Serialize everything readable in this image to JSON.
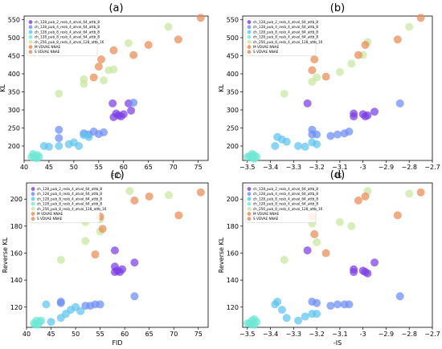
{
  "chart_data": [
    {
      "type": "scatter",
      "title": "(a)",
      "xlabel": "FID",
      "ylabel": "KL",
      "xlim": [
        40,
        77
      ],
      "ylim": [
        160,
        560
      ],
      "xticks": [
        40,
        45,
        50,
        55,
        60,
        65,
        70,
        75
      ],
      "yticks": [
        200,
        250,
        300,
        350,
        400,
        450,
        500,
        550
      ],
      "legend_position": "top-left",
      "series": [
        {
          "name": "ch_128_pub_2_resb_4_atval_64_attb_8",
          "color": "#7b3fe4",
          "points": [
            [
              58,
              280
            ],
            [
              59,
              285
            ],
            [
              59.5,
              282
            ],
            [
              60,
              288
            ],
            [
              58.5,
              290
            ],
            [
              61.5,
              298
            ],
            [
              61,
              318
            ],
            [
              57.8,
              318
            ]
          ]
        },
        {
          "name": "ch_128_pub_4_resb_4_atval_64_attb_8",
          "color": "#6c8ef5",
          "points": [
            [
              47,
              245
            ],
            [
              52,
              235
            ],
            [
              53,
              232
            ],
            [
              54,
              240
            ],
            [
              55,
              233
            ],
            [
              56,
              238
            ],
            [
              62,
              320
            ],
            [
              47,
              222
            ]
          ]
        },
        {
          "name": "ch_128_pub_8_resb_4_atval_64_attb_8",
          "color": "#5fc3ee",
          "points": [
            [
              44,
              200
            ],
            [
              45,
              198
            ],
            [
              47,
              200
            ],
            [
              49,
              205
            ],
            [
              50,
              210
            ],
            [
              51,
              200
            ],
            [
              52,
              230
            ],
            [
              53,
              225
            ]
          ]
        },
        {
          "name": "ch_128_pub_8_resb_4_atval_64_attb_8",
          "color": "#6ee8d4",
          "points": [
            [
              41.5,
              170
            ],
            [
              42,
              172
            ],
            [
              42.3,
              168
            ],
            [
              42.7,
              175
            ],
            [
              43,
              170
            ],
            [
              41.8,
              178
            ],
            [
              42.5,
              166
            ]
          ]
        },
        {
          "name": "ch_256_pub_8_resb_4_atval_128_attb_16",
          "color": "#c8e6a0",
          "points": [
            [
              47,
              345
            ],
            [
              52,
              385
            ],
            [
              52,
              372
            ],
            [
              56,
              382
            ],
            [
              57,
              410
            ],
            [
              58,
              412
            ],
            [
              61,
              485
            ],
            [
              69,
              530
            ]
          ]
        },
        {
          "name": "M VDVAE NNAE",
          "color": "#e88a55",
          "points": [
            [
              54,
              390
            ],
            [
              55,
              420
            ],
            [
              55.5,
              440
            ],
            [
              58,
              465
            ],
            [
              62,
              452
            ],
            [
              65,
              480
            ],
            [
              71,
              495
            ],
            [
              75.5,
              555
            ]
          ]
        },
        {
          "name": "S VDVAE NNAE",
          "color": "#e88a55",
          "points": []
        }
      ]
    },
    {
      "type": "scatter",
      "title": "(b)",
      "xlabel": "-IS",
      "ylabel": "KL",
      "xlim": [
        -3.52,
        -2.7
      ],
      "ylim": [
        160,
        560
      ],
      "xticks": [
        -3.5,
        -3.4,
        -3.3,
        -3.2,
        -3.1,
        -3.0,
        -2.9,
        -2.8,
        -2.7
      ],
      "yticks": [
        200,
        250,
        300,
        350,
        400,
        450,
        500,
        550
      ],
      "legend_position": "top-left",
      "series": [
        {
          "name": "ch_128_pub_2_resb_4_atval_64_attb_8",
          "color": "#7b3fe4",
          "points": [
            [
              -3.24,
              318
            ],
            [
              -3.04,
              290
            ],
            [
              -3.04,
              282
            ],
            [
              -3.0,
              288
            ],
            [
              -2.99,
              282
            ],
            [
              -2.98,
              285
            ],
            [
              -2.95,
              295
            ]
          ]
        },
        {
          "name": "ch_128_pub_4_resb_4_atval_64_attb_8",
          "color": "#6c8ef5",
          "points": [
            [
              -3.22,
              245
            ],
            [
              -3.2,
              232
            ],
            [
              -3.14,
              228
            ],
            [
              -3.11,
              232
            ],
            [
              -3.08,
              235
            ],
            [
              -3.06,
              240
            ],
            [
              -2.84,
              318
            ],
            [
              -3.22,
              232
            ]
          ]
        },
        {
          "name": "ch_128_pub_8_resb_4_atval_64_attb_8",
          "color": "#5fc3ee",
          "points": [
            [
              -3.37,
              225
            ],
            [
              -3.35,
              218
            ],
            [
              -3.33,
              212
            ],
            [
              -3.28,
              200
            ],
            [
              -3.25,
              198
            ],
            [
              -3.22,
              210
            ],
            [
              -3.2,
              205
            ],
            [
              -3.38,
              200
            ]
          ]
        },
        {
          "name": "ch_128_pub_8_resb_4_atval_64_attb_8",
          "color": "#6ee8d4",
          "points": [
            [
              -3.49,
              172
            ],
            [
              -3.48,
              168
            ],
            [
              -3.47,
              175
            ],
            [
              -3.46,
              170
            ],
            [
              -3.47,
              165
            ],
            [
              -3.48,
              178
            ],
            [
              -3.5,
              170
            ]
          ]
        },
        {
          "name": "ch_256_pub_8_resb_4_atval_128_attb_16",
          "color": "#c8e6a0",
          "points": [
            [
              -3.34,
              345
            ],
            [
              -3.22,
              378
            ],
            [
              -3.2,
              390
            ],
            [
              -3.1,
              405
            ],
            [
              -3.05,
              428
            ],
            [
              -3.0,
              452
            ],
            [
              -2.98,
              488
            ],
            [
              -2.8,
              530
            ]
          ]
        },
        {
          "name": "M VDVAE NNAE",
          "color": "#e88a55",
          "points": [
            [
              -3.22,
              410
            ],
            [
              -3.21,
              440
            ],
            [
              -3.16,
              392
            ],
            [
              -3.02,
              452
            ],
            [
              -2.99,
              480
            ],
            [
              -2.85,
              495
            ],
            [
              -2.75,
              555
            ]
          ]
        },
        {
          "name": "S VDVAE NNAE",
          "color": "#e88a55",
          "points": []
        }
      ]
    },
    {
      "type": "scatter",
      "title": "(c)",
      "xlabel": "FID",
      "ylabel": "Reverse KL",
      "xlim": [
        40,
        77
      ],
      "ylim": [
        105,
        212
      ],
      "xticks": [
        40,
        45,
        50,
        55,
        60,
        65,
        70,
        75
      ],
      "yticks": [
        120,
        140,
        160,
        180,
        200
      ],
      "legend_position": "top-left",
      "series": [
        {
          "name": "ch_128_pub_2_resb_4_atval_64_attb_8",
          "color": "#7b3fe4",
          "points": [
            [
              58,
              146
            ],
            [
              58.5,
              147
            ],
            [
              59,
              146
            ],
            [
              59.5,
              148
            ],
            [
              58,
              150
            ],
            [
              58,
              162
            ],
            [
              62,
              153
            ]
          ]
        },
        {
          "name": "ch_128_pub_4_resb_4_atval_64_attb_8",
          "color": "#6c8ef5",
          "points": [
            [
              47,
              124
            ],
            [
              47,
              123
            ],
            [
              52,
              121
            ],
            [
              53,
              121
            ],
            [
              54,
              122
            ],
            [
              55,
              122
            ],
            [
              62,
              128
            ]
          ]
        },
        {
          "name": "ch_128_pub_8_resb_4_atval_64_attb_8",
          "color": "#5fc3ee",
          "points": [
            [
              44,
              122
            ],
            [
              45,
              109
            ],
            [
              47,
              112
            ],
            [
              48,
              115
            ],
            [
              49,
              118
            ],
            [
              50,
              120
            ],
            [
              51,
              117
            ]
          ]
        },
        {
          "name": "ch_128_pub_8_resb_4_atval_64_attb_8",
          "color": "#6ee8d4",
          "points": [
            [
              41.5,
              108
            ],
            [
              42,
              110
            ],
            [
              42.3,
              107
            ],
            [
              42.7,
              109
            ],
            [
              43,
              110
            ],
            [
              41.8,
              107
            ]
          ]
        },
        {
          "name": "ch_256_pub_8_resb_4_atval_128_attb_16",
          "color": "#c8e6a0",
          "points": [
            [
              47,
              155
            ],
            [
              52,
              183
            ],
            [
              52,
              169
            ],
            [
              55,
              185
            ],
            [
              55,
              176
            ],
            [
              61,
              206
            ],
            [
              69,
              203
            ]
          ]
        },
        {
          "name": "M VDVAE NNAE",
          "color": "#e88a55",
          "points": [
            [
              54,
              159
            ],
            [
              55,
              187
            ],
            [
              55.5,
              178
            ],
            [
              62,
              199
            ],
            [
              65,
              202
            ],
            [
              71,
              188
            ],
            [
              75.5,
              205
            ]
          ]
        },
        {
          "name": "S VDVAE NNAE",
          "color": "#e88a55",
          "points": []
        }
      ]
    },
    {
      "type": "scatter",
      "title": "(d)",
      "xlabel": "-IS",
      "ylabel": "Reverse KL",
      "xlim": [
        -3.52,
        -2.7
      ],
      "ylim": [
        105,
        212
      ],
      "xticks": [
        -3.5,
        -3.4,
        -3.3,
        -3.2,
        -3.1,
        -3.0,
        -2.9,
        -2.8,
        -2.7
      ],
      "yticks": [
        120,
        140,
        160,
        180,
        200
      ],
      "legend_position": "top-left",
      "series": [
        {
          "name": "ch_128_pub_2_resb_4_atval_64_attb_8",
          "color": "#7b3fe4",
          "points": [
            [
              -3.24,
              162
            ],
            [
              -3.04,
              148
            ],
            [
              -3.04,
              146
            ],
            [
              -3.0,
              147
            ],
            [
              -2.99,
              146
            ],
            [
              -2.98,
              145
            ],
            [
              -2.95,
              153
            ]
          ]
        },
        {
          "name": "ch_128_pub_4_resb_4_atval_64_attb_8",
          "color": "#6c8ef5",
          "points": [
            [
              -3.22,
              124
            ],
            [
              -3.2,
              123
            ],
            [
              -3.14,
              121
            ],
            [
              -3.11,
              122
            ],
            [
              -3.08,
              122
            ],
            [
              -3.06,
              122
            ],
            [
              -2.84,
              128
            ]
          ]
        },
        {
          "name": "ch_128_pub_8_resb_4_atval_64_attb_8",
          "color": "#5fc3ee",
          "points": [
            [
              -3.37,
              124
            ],
            [
              -3.35,
              118
            ],
            [
              -3.33,
              112
            ],
            [
              -3.28,
              110
            ],
            [
              -3.25,
              113
            ],
            [
              -3.22,
              115
            ],
            [
              -3.2,
              115
            ],
            [
              -3.38,
              122
            ]
          ]
        },
        {
          "name": "ch_128_pub_8_resb_4_atval_64_attb_8",
          "color": "#6ee8d4",
          "points": [
            [
              -3.49,
              108
            ],
            [
              -3.48,
              110
            ],
            [
              -3.47,
              107
            ],
            [
              -3.46,
              109
            ],
            [
              -3.47,
              111
            ],
            [
              -3.48,
              107
            ],
            [
              -3.5,
              108
            ]
          ]
        },
        {
          "name": "ch_256_pub_8_resb_4_atval_128_attb_16",
          "color": "#c8e6a0",
          "points": [
            [
              -3.34,
              155
            ],
            [
              -3.22,
              182
            ],
            [
              -3.2,
              168
            ],
            [
              -3.1,
              183
            ],
            [
              -3.05,
              180
            ],
            [
              -2.98,
              206
            ],
            [
              -2.8,
              204
            ]
          ]
        },
        {
          "name": "M VDVAE NNAE",
          "color": "#e88a55",
          "points": [
            [
              -3.22,
              187
            ],
            [
              -3.21,
              174
            ],
            [
              -3.16,
              160
            ],
            [
              -3.02,
              199
            ],
            [
              -2.99,
              202
            ],
            [
              -2.85,
              188
            ],
            [
              -2.75,
              205
            ]
          ]
        },
        {
          "name": "S VDVAE NNAE",
          "color": "#e88a55",
          "points": []
        }
      ]
    }
  ]
}
